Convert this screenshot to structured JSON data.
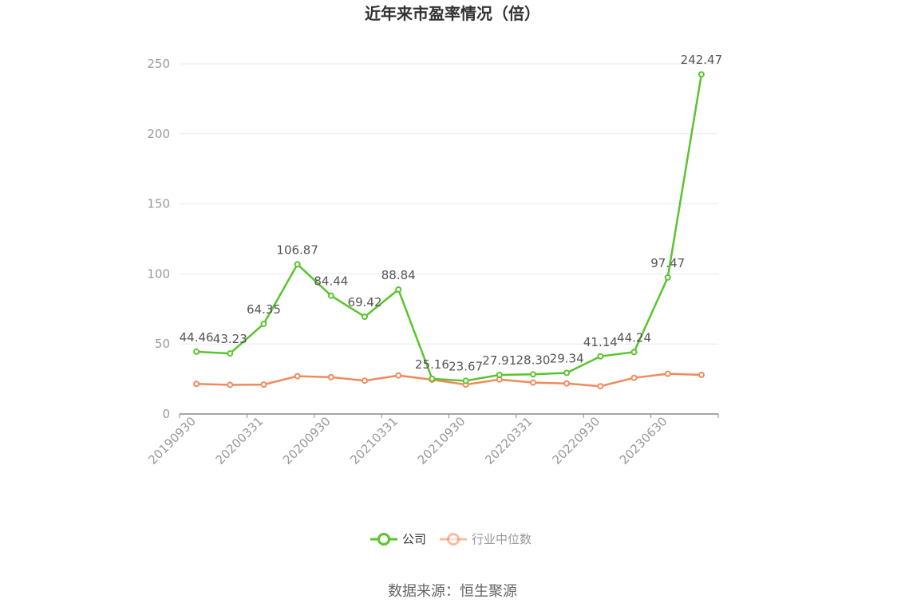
{
  "chart_data": {
    "type": "line",
    "title": "近年来市盈率情况（倍）",
    "xlabel": "",
    "ylabel": "",
    "ylim": [
      0,
      250
    ],
    "yticks": [
      0,
      50,
      100,
      150,
      200,
      250
    ],
    "x_tick_labels": [
      "20190930",
      "20200331",
      "20200930",
      "20210331",
      "20210930",
      "20220331",
      "20220930",
      "20230630"
    ],
    "grid": true,
    "legend_position": "bottom",
    "series": [
      {
        "name": "公司",
        "color": "#5ac42d",
        "values": [
          44.46,
          43.23,
          64.35,
          106.87,
          84.44,
          69.42,
          88.84,
          25.16,
          23.67,
          27.91,
          28.3,
          29.34,
          41.14,
          44.24,
          97.47,
          242.47
        ],
        "labels": [
          "44.46",
          "43.23",
          "64.35",
          "106.87",
          "84.44",
          "69.42",
          "88.84",
          "25.16",
          "23.67",
          "27.91",
          "28.30",
          "29.34",
          "41.14",
          "44.24",
          "97.47",
          "242.47"
        ]
      },
      {
        "name": "行业中位数",
        "color": "#f08a5d",
        "values": [
          21.5,
          20.8,
          21.0,
          27.0,
          26.3,
          23.8,
          27.5,
          24.5,
          21.0,
          24.6,
          22.4,
          21.8,
          19.8,
          25.8,
          28.7,
          27.9
        ]
      }
    ]
  },
  "source": "数据来源：恒生聚源"
}
